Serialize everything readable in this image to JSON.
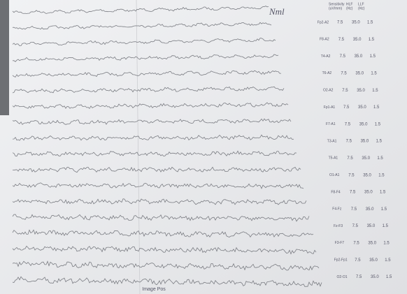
{
  "header": {
    "columns": [
      {
        "name": "Sensitivity",
        "unit": "(uV/mm)"
      },
      {
        "name": "HLF",
        "unit": "(Hz)"
      },
      {
        "name": "LLF",
        "unit": "(Hz)"
      }
    ]
  },
  "annotation": "Nml",
  "channels": [
    {
      "label": "Fp2-A2",
      "sensitivity": "7.5",
      "hlf": "35.0",
      "llf": "1.5"
    },
    {
      "label": "F8-A2",
      "sensitivity": "7.5",
      "hlf": "35.0",
      "llf": "1.5"
    },
    {
      "label": "T4-A2",
      "sensitivity": "7.5",
      "hlf": "35.0",
      "llf": "1.5"
    },
    {
      "label": "T6-A2",
      "sensitivity": "7.5",
      "hlf": "35.0",
      "llf": "1.5"
    },
    {
      "label": "O2-A2",
      "sensitivity": "7.5",
      "hlf": "35.0",
      "llf": "1.5"
    },
    {
      "label": "Fp1-A1",
      "sensitivity": "7.5",
      "hlf": "35.0",
      "llf": "1.5"
    },
    {
      "label": "F7-A1",
      "sensitivity": "7.5",
      "hlf": "35.0",
      "llf": "1.5"
    },
    {
      "label": "T3-A1",
      "sensitivity": "7.5",
      "hlf": "35.0",
      "llf": "1.5"
    },
    {
      "label": "T5-A1",
      "sensitivity": "7.5",
      "hlf": "35.0",
      "llf": "1.5"
    },
    {
      "label": "O1-A1",
      "sensitivity": "7.5",
      "hlf": "35.0",
      "llf": "1.5"
    },
    {
      "label": "F8-F4",
      "sensitivity": "7.5",
      "hlf": "35.0",
      "llf": "1.5"
    },
    {
      "label": "F4-Fz",
      "sensitivity": "7.5",
      "hlf": "35.0",
      "llf": "1.5"
    },
    {
      "label": "Fz-F3",
      "sensitivity": "7.5",
      "hlf": "35.0",
      "llf": "1.5"
    },
    {
      "label": "F3-F7",
      "sensitivity": "7.5",
      "hlf": "35.0",
      "llf": "1.5"
    },
    {
      "label": "Fp2-Fp1",
      "sensitivity": "7.5",
      "hlf": "35.0",
      "llf": "1.5"
    },
    {
      "label": "O2-O1",
      "sensitivity": "7.5",
      "hlf": "35.0",
      "llf": "1.5"
    }
  ],
  "footer": "Image Pos"
}
